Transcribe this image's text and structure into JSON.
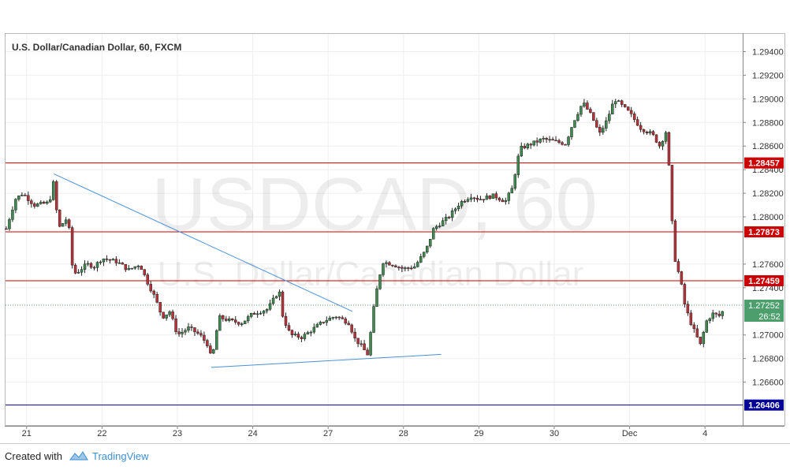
{
  "chart_data": {
    "type": "candlestick",
    "title": "U.S. Dollar/Canadian Dollar, 60, FXCM",
    "watermark_symbol": "USDCAD, 60",
    "watermark_name": "U.S. Dollar/Canadian Dollar",
    "ylim": [
      1.2623,
      1.2955
    ],
    "y_ticks": [
      "1.29400",
      "1.29200",
      "1.29000",
      "1.28800",
      "1.28600",
      "1.28400",
      "1.28200",
      "1.28000",
      "1.27600",
      "1.27400",
      "1.27000",
      "1.26800",
      "1.26600"
    ],
    "x_ticks": [
      "21",
      "22",
      "23",
      "24",
      "27",
      "28",
      "29",
      "30",
      "Dec",
      "4"
    ],
    "x_tick_positions": [
      0,
      1,
      2,
      3,
      4,
      5,
      6,
      7,
      8,
      9
    ],
    "xlim": [
      -0.28,
      9.5
    ],
    "horizontal_lines": [
      {
        "value": 1.28457,
        "label": "1.28457",
        "color": "#cc0000"
      },
      {
        "value": 1.27873,
        "label": "1.27873",
        "color": "#cc0000"
      },
      {
        "value": 1.27459,
        "label": "1.27459",
        "color": "#cc0000"
      },
      {
        "value": 1.26406,
        "label": "1.26406",
        "color": "#000099"
      }
    ],
    "current_price": {
      "value": 1.27252,
      "label": "1.27252",
      "countdown": "26:52",
      "color": "#4c9e6c"
    },
    "trendlines": [
      {
        "points": [
          [
            0.36,
            1.28365
          ],
          [
            4.32,
            1.272
          ]
        ],
        "color": "#4a90d9"
      },
      {
        "points": [
          [
            2.45,
            1.26725
          ],
          [
            5.5,
            1.26835
          ]
        ],
        "color": "#4a90d9"
      }
    ],
    "ohlc_anchors": [
      [
        -0.27,
        1.279
      ],
      [
        -0.15,
        1.2815
      ],
      [
        -0.05,
        1.282
      ],
      [
        0.1,
        1.281
      ],
      [
        0.3,
        1.2812
      ],
      [
        0.36,
        1.283
      ],
      [
        0.42,
        1.279
      ],
      [
        0.55,
        1.28
      ],
      [
        0.6,
        1.276
      ],
      [
        0.65,
        1.2752
      ],
      [
        0.8,
        1.276
      ],
      [
        0.9,
        1.2758
      ],
      [
        1.0,
        1.2765
      ],
      [
        1.2,
        1.2762
      ],
      [
        1.35,
        1.2755
      ],
      [
        1.5,
        1.276
      ],
      [
        1.6,
        1.2745
      ],
      [
        1.7,
        1.2732
      ],
      [
        1.8,
        1.2715
      ],
      [
        1.9,
        1.272
      ],
      [
        2.0,
        1.27
      ],
      [
        2.15,
        1.2706
      ],
      [
        2.3,
        1.27
      ],
      [
        2.4,
        1.2692
      ],
      [
        2.45,
        1.268
      ],
      [
        2.48,
        1.2687
      ],
      [
        2.55,
        1.2715
      ],
      [
        2.7,
        1.2712
      ],
      [
        2.85,
        1.271
      ],
      [
        3.0,
        1.2718
      ],
      [
        3.2,
        1.2722
      ],
      [
        3.35,
        1.2738
      ],
      [
        3.4,
        1.2715
      ],
      [
        3.5,
        1.27
      ],
      [
        3.65,
        1.2698
      ],
      [
        3.8,
        1.2705
      ],
      [
        3.95,
        1.2712
      ],
      [
        4.1,
        1.2716
      ],
      [
        4.28,
        1.271
      ],
      [
        4.35,
        1.2697
      ],
      [
        4.45,
        1.269
      ],
      [
        4.52,
        1.2683
      ],
      [
        4.55,
        1.2695
      ],
      [
        4.62,
        1.273
      ],
      [
        4.72,
        1.2762
      ],
      [
        4.85,
        1.276
      ],
      [
        5.0,
        1.2756
      ],
      [
        5.15,
        1.2758
      ],
      [
        5.3,
        1.2772
      ],
      [
        5.4,
        1.279
      ],
      [
        5.6,
        1.28
      ],
      [
        5.75,
        1.2812
      ],
      [
        5.9,
        1.2818
      ],
      [
        6.0,
        1.2815
      ],
      [
        6.2,
        1.2818
      ],
      [
        6.35,
        1.2813
      ],
      [
        6.45,
        1.2825
      ],
      [
        6.5,
        1.2845
      ],
      [
        6.55,
        1.2858
      ],
      [
        6.7,
        1.2862
      ],
      [
        6.85,
        1.2866
      ],
      [
        7.0,
        1.2864
      ],
      [
        7.15,
        1.2862
      ],
      [
        7.25,
        1.288
      ],
      [
        7.38,
        1.2897
      ],
      [
        7.5,
        1.2885
      ],
      [
        7.6,
        1.287
      ],
      [
        7.7,
        1.2882
      ],
      [
        7.8,
        1.29
      ],
      [
        8.0,
        1.2888
      ],
      [
        8.15,
        1.2875
      ],
      [
        8.3,
        1.287
      ],
      [
        8.4,
        1.286
      ],
      [
        8.5,
        1.2875
      ],
      [
        8.53,
        1.283
      ],
      [
        8.56,
        1.28
      ],
      [
        8.58,
        1.277
      ],
      [
        8.62,
        1.276
      ],
      [
        8.68,
        1.2745
      ],
      [
        8.72,
        1.2728
      ],
      [
        8.8,
        1.2712
      ],
      [
        8.88,
        1.27
      ],
      [
        8.95,
        1.269
      ],
      [
        9.0,
        1.271
      ],
      [
        9.1,
        1.2718
      ],
      [
        9.2,
        1.2716
      ],
      [
        9.25,
        1.2722
      ]
    ]
  },
  "footer": {
    "created_with": "Created with",
    "brand": "TradingView",
    "brand_color": "#3d8fd1"
  }
}
